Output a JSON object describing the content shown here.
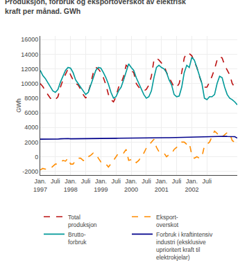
{
  "chart_data": {
    "type": "line",
    "title": "Produksjon, forbruk og eksportoverskot av elektrisk\nkraft per månad. GWh",
    "ylabel": "GWh",
    "categories": [
      "Jan.\n1997",
      null,
      null,
      null,
      null,
      null,
      "Juli",
      null,
      null,
      null,
      null,
      null,
      "Jan.\n1998",
      null,
      null,
      null,
      null,
      null,
      "Juli",
      null,
      null,
      null,
      null,
      null,
      "Jan.\n1999",
      null,
      null,
      null,
      null,
      null,
      "Juli",
      null,
      null,
      null,
      null,
      null,
      "Jan.\n2000",
      null,
      null,
      null,
      null,
      null,
      "Juli",
      null,
      null,
      null,
      null,
      null,
      "Jan.\n2001",
      null,
      null,
      null,
      null,
      null,
      "Juli",
      null,
      null,
      null,
      null,
      null,
      "Jan.\n2002",
      null,
      null,
      null,
      null,
      null,
      "Juli",
      null,
      null,
      null,
      null,
      null,
      null,
      null,
      null,
      null,
      null,
      null,
      null
    ],
    "series": [
      {
        "name": "Total\nproduksjon",
        "color": "#BB1111",
        "line_style": "dashed",
        "values": [
          10000,
          9600,
          9000,
          8500,
          8000,
          7700,
          7800,
          8200,
          9500,
          10500,
          11200,
          12000,
          11200,
          10500,
          10000,
          9800,
          9200,
          8500,
          8000,
          8800,
          10000,
          11500,
          12200,
          12000,
          11500,
          10800,
          9800,
          8500,
          7800,
          7500,
          8200,
          9500,
          10000,
          11000,
          12500,
          12200,
          11800,
          11500,
          10000,
          9500,
          9200,
          9000,
          9200,
          9800,
          11000,
          13200,
          13500,
          13200,
          12800,
          12500,
          11500,
          10800,
          10200,
          9500,
          9500,
          10000,
          11500,
          13500,
          14200,
          14100,
          13800,
          13000,
          12200,
          11000,
          10000,
          9500,
          9500,
          10200,
          11000,
          12000,
          13200,
          13700,
          13500,
          12500,
          11800,
          11200,
          10000,
          9500,
          9700
        ]
      },
      {
        "name": "Eksport-\noverskot",
        "color": "#FF8C00",
        "line_style": "dashed",
        "values": [
          -1800,
          -1600,
          -1700,
          -1600,
          -1600,
          -1300,
          -1000,
          -1000,
          -800,
          -500,
          -600,
          -200,
          -1000,
          -1000,
          -500,
          -200,
          -200,
          -500,
          -500,
          0,
          200,
          500,
          400,
          -200,
          -700,
          -700,
          -1000,
          -1400,
          -1000,
          -500,
          0,
          500,
          500,
          500,
          1000,
          -500,
          -400,
          -300,
          -800,
          -500,
          0,
          500,
          1200,
          1600,
          2000,
          2400,
          1300,
          700,
          600,
          500,
          0,
          300,
          400,
          1000,
          1300,
          1700,
          2000,
          2000,
          1700,
          1900,
          200,
          -200,
          0,
          -200,
          0,
          1500,
          1700,
          2000,
          2800,
          3500,
          3200,
          2700,
          2700,
          3000,
          3300,
          3200,
          2200,
          2000,
          2600
        ]
      },
      {
        "name": "Brutto-\nforbruk",
        "color": "#009999",
        "line_style": "solid",
        "values": [
          11800,
          11100,
          10700,
          10100,
          9500,
          9000,
          8800,
          9200,
          10200,
          11000,
          11800,
          12200,
          12100,
          11500,
          10500,
          10000,
          9500,
          9000,
          8500,
          8800,
          9800,
          11000,
          11800,
          12200,
          12100,
          11500,
          10800,
          9900,
          8800,
          8000,
          8200,
          9000,
          9500,
          10500,
          11500,
          12700,
          12200,
          11800,
          10800,
          10000,
          9200,
          8500,
          8000,
          8200,
          9000,
          10800,
          12200,
          12500,
          12200,
          12000,
          11500,
          10500,
          9800,
          8500,
          8200,
          8300,
          9500,
          11500,
          12500,
          12200,
          13600,
          13200,
          12200,
          11200,
          10000,
          8000,
          7800,
          8200,
          8200,
          8500,
          10000,
          11000,
          10800,
          9500,
          8500,
          8000,
          7800,
          7500,
          7100
        ]
      },
      {
        "name": "Forbruk i kraftintensiv\nindustri (eksklusive\nuprioritert kraft til\nelektrokjelar)",
        "color": "#00008B",
        "line_style": "solid",
        "values": [
          2400,
          2400,
          2350,
          2350,
          2380,
          2400,
          2420,
          2420,
          2450,
          2480,
          2480,
          2480,
          2450,
          2450,
          2480,
          2480,
          2480,
          2480,
          2490,
          2490,
          2490,
          2500,
          2500,
          2500,
          2510,
          2510,
          2510,
          2510,
          2510,
          2520,
          2520,
          2530,
          2530,
          2540,
          2540,
          2540,
          2540,
          2540,
          2550,
          2560,
          2560,
          2560,
          2570,
          2580,
          2580,
          2590,
          2590,
          2590,
          2590,
          2590,
          2600,
          2610,
          2620,
          2620,
          2630,
          2640,
          2650,
          2660,
          2680,
          2690,
          2720,
          2740,
          2750,
          2760,
          2770,
          2780,
          2790,
          2800,
          2810,
          2820,
          2840,
          2850,
          2820,
          2800,
          2780,
          2780,
          2760,
          2750,
          2550
        ]
      }
    ],
    "ylim": [
      -2500,
      16500
    ],
    "yticks": [
      -2000,
      0,
      2000,
      4000,
      6000,
      8000,
      10000,
      12000,
      14000,
      16000
    ],
    "grid": true,
    "legend": "bottom"
  }
}
